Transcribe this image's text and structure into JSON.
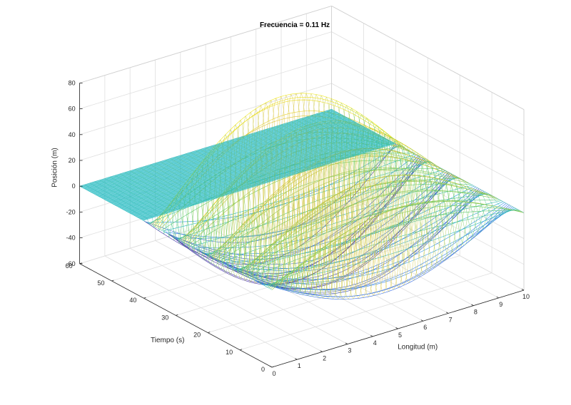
{
  "chart_data": {
    "type": "surface",
    "title": "Frecuencia = 0.11 Hz",
    "xlabel": "Longitud (m)",
    "ylabel": "Tiempo (s)",
    "zlabel": "Posición (m)",
    "xlim": [
      0,
      10
    ],
    "ylim": [
      0,
      60
    ],
    "zlim": [
      -60,
      80
    ],
    "xticks": [
      0,
      1,
      2,
      3,
      4,
      5,
      6,
      7,
      8,
      9,
      10
    ],
    "yticks": [
      0,
      10,
      20,
      30,
      40,
      50,
      60
    ],
    "zticks": [
      -60,
      -40,
      -20,
      0,
      20,
      40,
      60,
      80
    ],
    "grid": true,
    "colormap": [
      "#3e26a8",
      "#2f7cf6",
      "#1fb4c6",
      "#6ccd5a",
      "#e2c232",
      "#f9fb0e"
    ],
    "edge_color_flat": "#1db8c0",
    "surface_function": "z = A(t) * sin(pi*x/L) * cos(2*pi*f*t), zero after t0",
    "frequency_hz": 0.11,
    "length_m": 10,
    "amplitude_max_m": 75,
    "wave_active_until_s": 40
  }
}
